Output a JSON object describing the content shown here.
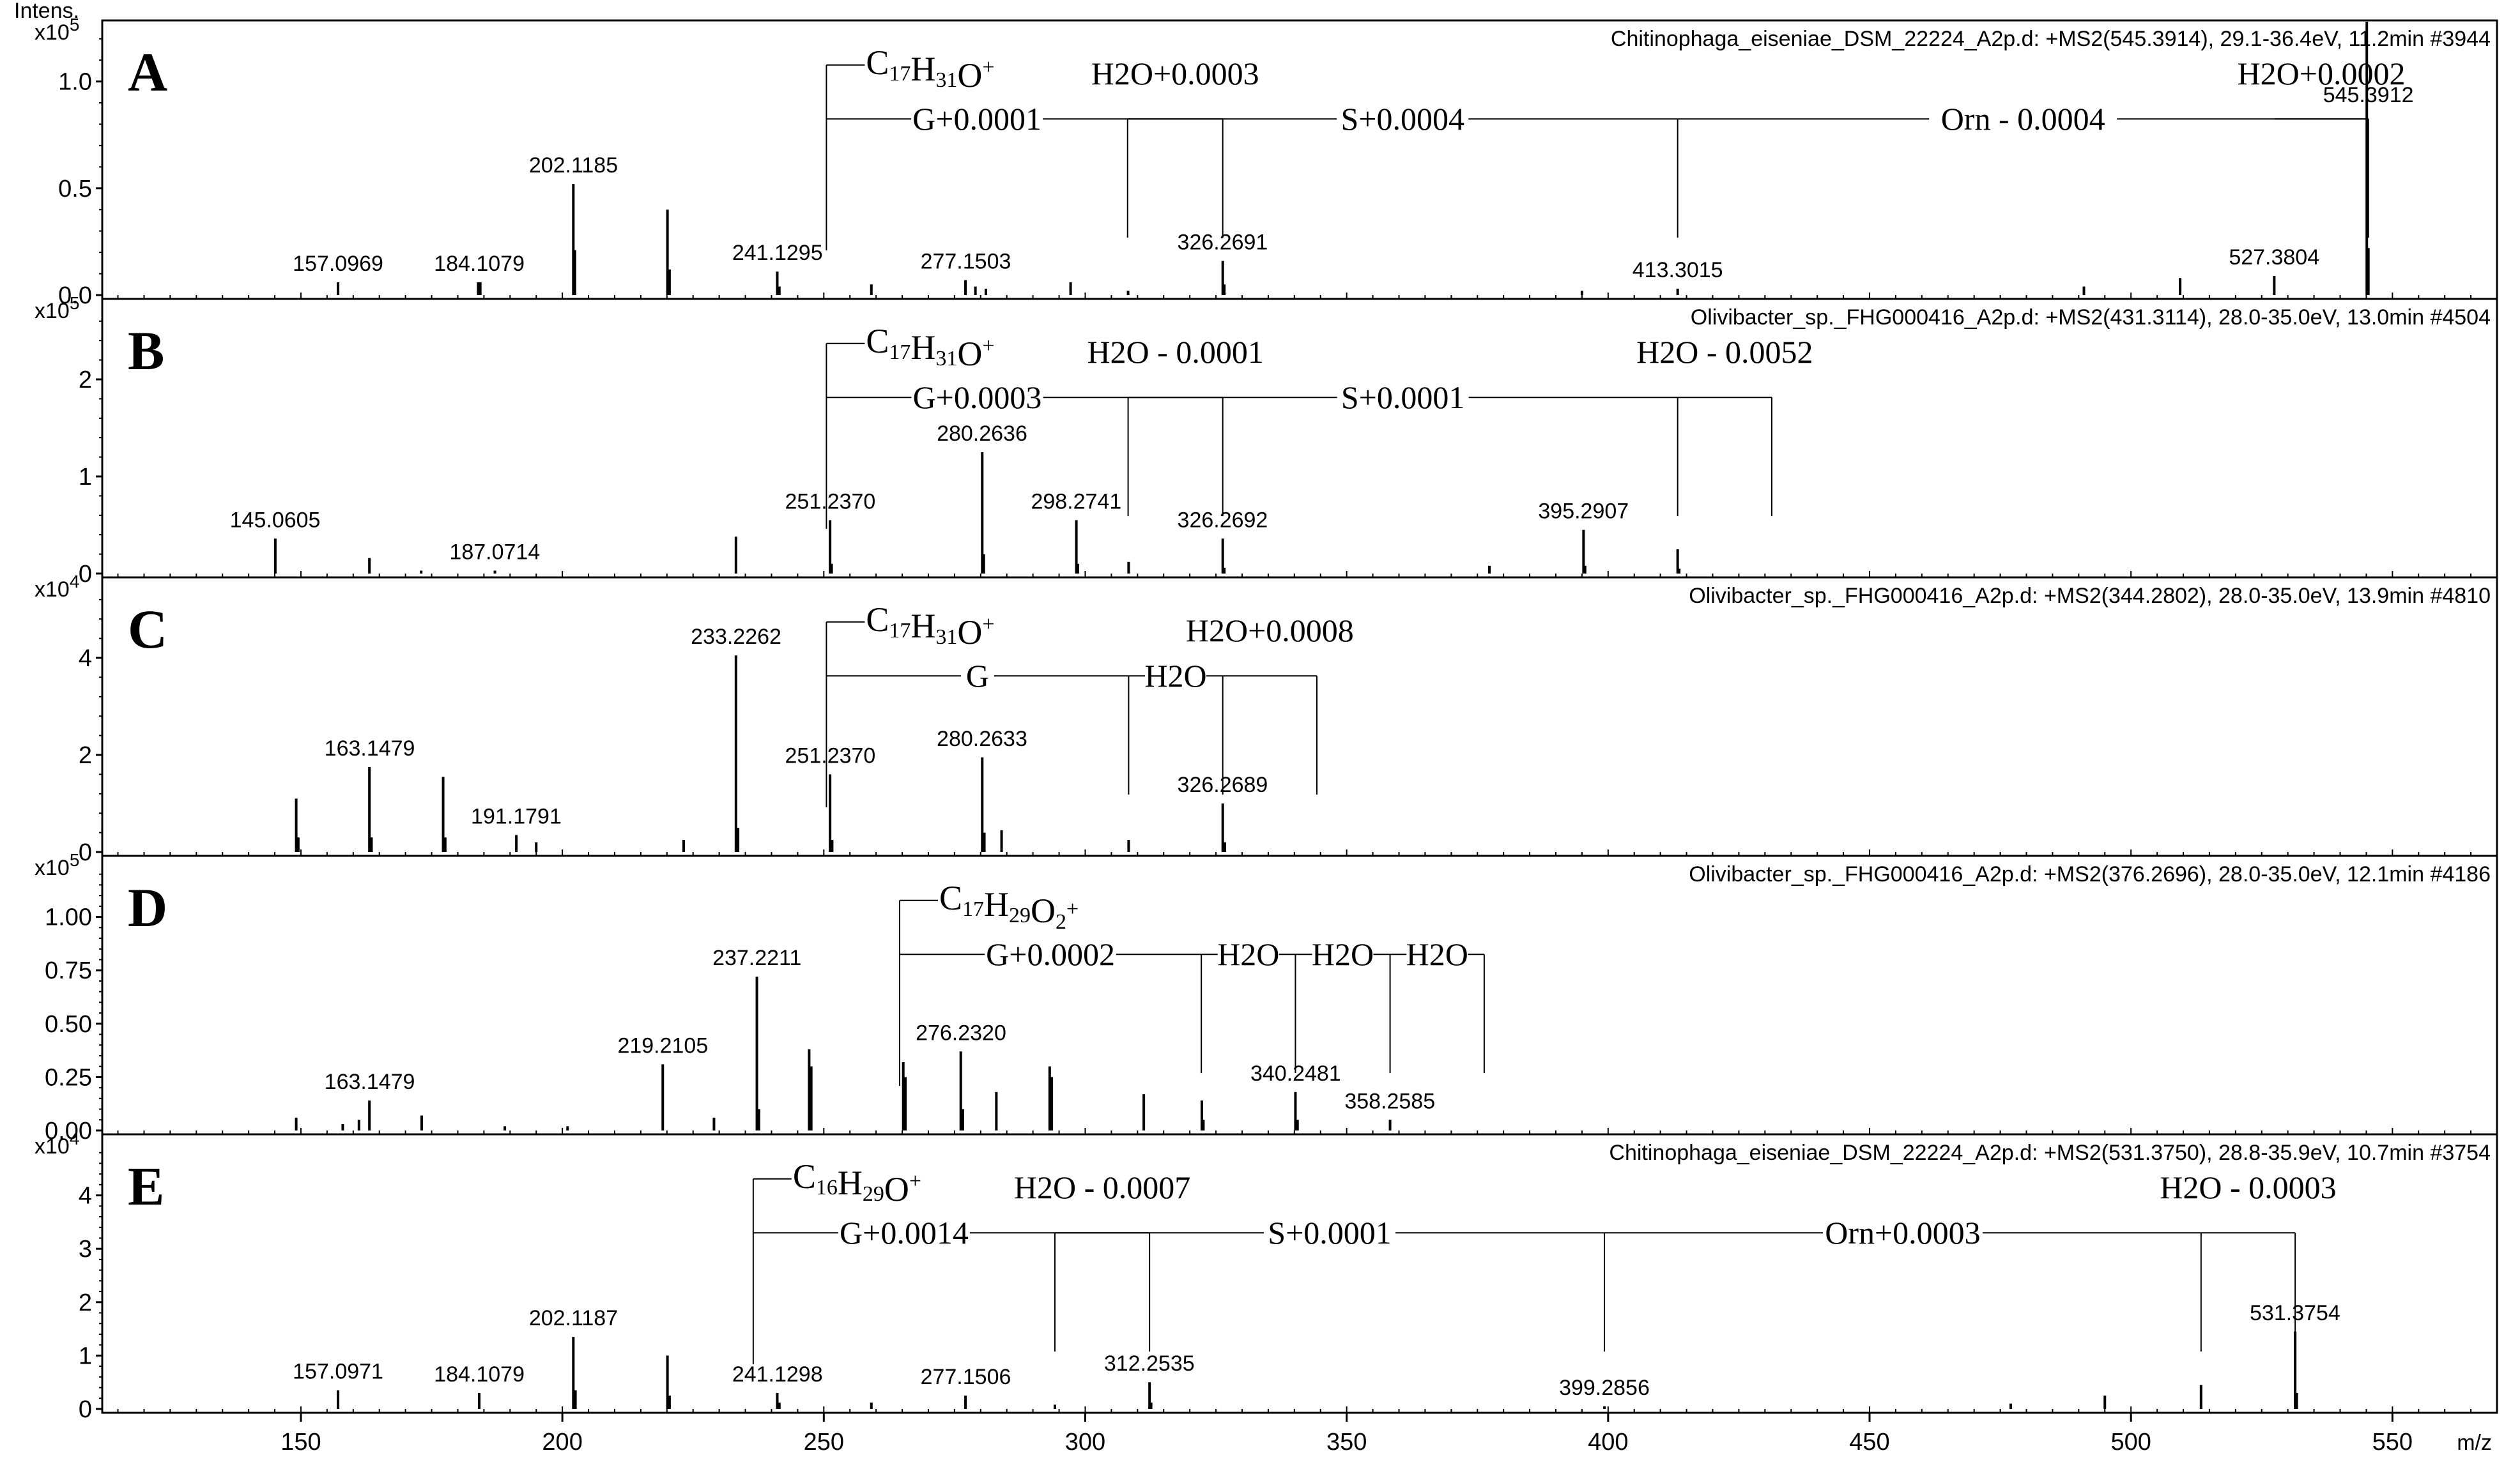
{
  "chart_data": [
    {
      "type": "spectrum",
      "panel": "A",
      "title": "Chitinophaga_eiseniae_DSM_22224_A2p.d: +MS2(545.3914), 29.1-36.4eV, 11.2min #3944",
      "ylabel": "Intens.",
      "yexp": "x10",
      "yexp_power": "5",
      "ylim": [
        0,
        1.25
      ],
      "yticks": [
        {
          "v": 0.0,
          "t": "0.0"
        },
        {
          "v": 0.5,
          "t": "0.5"
        },
        {
          "v": 1.0,
          "t": "1.0"
        }
      ],
      "peaks": [
        [
          157.1,
          0.06
        ],
        [
          183.9,
          0.06
        ],
        [
          184.3,
          0.06
        ],
        [
          202.1,
          0.52
        ],
        [
          202.4,
          0.21
        ],
        [
          220.1,
          0.4
        ],
        [
          220.5,
          0.12
        ],
        [
          241.1,
          0.11
        ],
        [
          241.5,
          0.04
        ],
        [
          259.1,
          0.05
        ],
        [
          277.1,
          0.07
        ],
        [
          279.0,
          0.04
        ],
        [
          281.0,
          0.03
        ],
        [
          297.2,
          0.06
        ],
        [
          308.2,
          0.02
        ],
        [
          326.3,
          0.16
        ],
        [
          326.6,
          0.05
        ],
        [
          395.0,
          0.02
        ],
        [
          413.3,
          0.03
        ],
        [
          491.0,
          0.04
        ],
        [
          509.4,
          0.08
        ],
        [
          527.4,
          0.09
        ],
        [
          545.1,
          1.28
        ],
        [
          545.4,
          0.22
        ]
      ],
      "labels": [
        {
          "x": 157.0969,
          "y": 0.06,
          "t": "157.0969"
        },
        {
          "x": 184.1079,
          "y": 0.06,
          "t": "184.1079"
        },
        {
          "x": 202.1185,
          "y": 0.52,
          "t": "202.1185"
        },
        {
          "x": 241.1295,
          "y": 0.11,
          "t": "241.1295"
        },
        {
          "x": 277.1503,
          "y": 0.07,
          "t": "277.1503"
        },
        {
          "x": 326.2691,
          "y": 0.16,
          "t": "326.2691"
        },
        {
          "x": 413.3015,
          "y": 0.03,
          "t": "413.3015"
        },
        {
          "x": 527.3804,
          "y": 0.09,
          "t": "527.3804"
        },
        {
          "x": 545.3912,
          "y": 0.85,
          "t": "545.3912"
        }
      ],
      "formula": {
        "x": 250.5,
        "c": "17",
        "h": "31",
        "o": "",
        "charge": "+"
      },
      "ladder": [
        {
          "x1": 250.5,
          "x2": 308.1,
          "t": "G+0.0001"
        },
        {
          "x1": 308.1,
          "x2": 413.3,
          "t": "S+0.0004"
        },
        {
          "x1": 413.3,
          "x2": 545.4,
          "t": "Orn - 0.0004"
        }
      ],
      "h2o": [
        {
          "x1": 308.1,
          "x2": 326.3,
          "t": "H2O+0.0003"
        },
        {
          "x1": 527.4,
          "x2": 545.4,
          "t": "H2O+0.0002"
        }
      ]
    },
    {
      "type": "spectrum",
      "panel": "B",
      "title": "Olivibacter_sp._FHG000416_A2p.d: +MS2(431.3114), 28.0-35.0eV, 13.0min #4504",
      "ylabel": "",
      "yexp": "x10",
      "yexp_power": "5",
      "ylim": [
        0,
        2.75
      ],
      "yticks": [
        {
          "v": 0,
          "t": "0"
        },
        {
          "v": 1,
          "t": "1"
        },
        {
          "v": 2,
          "t": "2"
        }
      ],
      "peaks": [
        [
          145.1,
          0.36
        ],
        [
          163.1,
          0.16
        ],
        [
          173.0,
          0.03
        ],
        [
          187.1,
          0.03
        ],
        [
          233.2,
          0.38
        ],
        [
          251.2,
          0.55
        ],
        [
          251.5,
          0.1
        ],
        [
          280.3,
          1.25
        ],
        [
          280.6,
          0.2
        ],
        [
          298.3,
          0.55
        ],
        [
          298.6,
          0.1
        ],
        [
          308.3,
          0.12
        ],
        [
          326.3,
          0.36
        ],
        [
          326.6,
          0.06
        ],
        [
          377.3,
          0.08
        ],
        [
          395.3,
          0.45
        ],
        [
          395.6,
          0.08
        ],
        [
          413.3,
          0.25
        ],
        [
          413.6,
          0.05
        ]
      ],
      "labels": [
        {
          "x": 145.0605,
          "y": 0.36,
          "t": "145.0605"
        },
        {
          "x": 187.0714,
          "y": 0.03,
          "t": "187.0714"
        },
        {
          "x": 251.237,
          "y": 0.55,
          "t": "251.2370"
        },
        {
          "x": 280.2636,
          "y": 1.25,
          "t": "280.2636"
        },
        {
          "x": 298.2741,
          "y": 0.55,
          "t": "298.2741"
        },
        {
          "x": 326.2692,
          "y": 0.36,
          "t": "326.2692"
        },
        {
          "x": 395.2907,
          "y": 0.45,
          "t": "395.2907"
        }
      ],
      "formula": {
        "x": 250.5,
        "c": "17",
        "h": "31",
        "o": "",
        "charge": "+"
      },
      "ladder": [
        {
          "x1": 250.5,
          "x2": 308.2,
          "t": "G+0.0003"
        },
        {
          "x1": 308.2,
          "x2": 413.3,
          "t": "S+0.0001"
        }
      ],
      "h2o": [
        {
          "x1": 308.2,
          "x2": 326.3,
          "t": "H2O - 0.0001"
        },
        {
          "x1": 413.3,
          "x2": 431.3,
          "t": "H2O - 0.0052"
        }
      ]
    },
    {
      "type": "spectrum",
      "panel": "C",
      "title": "Olivibacter_sp._FHG000416_A2p.d: +MS2(344.2802), 28.0-35.0eV, 13.9min #4810",
      "ylabel": "",
      "yexp": "x10",
      "yexp_power": "4",
      "ylim": [
        0,
        5.5
      ],
      "yticks": [
        {
          "v": 0,
          "t": "0"
        },
        {
          "v": 2,
          "t": "2"
        },
        {
          "v": 4,
          "t": "4"
        }
      ],
      "peaks": [
        [
          149.1,
          1.1
        ],
        [
          149.5,
          0.3
        ],
        [
          163.1,
          1.75
        ],
        [
          163.5,
          0.3
        ],
        [
          177.2,
          1.55
        ],
        [
          177.6,
          0.3
        ],
        [
          191.2,
          0.35
        ],
        [
          195.0,
          0.2
        ],
        [
          223.2,
          0.25
        ],
        [
          233.2,
          4.05
        ],
        [
          233.6,
          0.5
        ],
        [
          251.2,
          1.6
        ],
        [
          251.6,
          0.25
        ],
        [
          280.3,
          1.95
        ],
        [
          280.7,
          0.4
        ],
        [
          284.0,
          0.45
        ],
        [
          308.3,
          0.25
        ],
        [
          326.3,
          1.0
        ],
        [
          326.7,
          0.2
        ]
      ],
      "labels": [
        {
          "x": 163.1479,
          "y": 1.75,
          "t": "163.1479"
        },
        {
          "x": 191.1791,
          "y": 0.35,
          "t": "191.1791"
        },
        {
          "x": 233.2262,
          "y": 4.05,
          "t": "233.2262"
        },
        {
          "x": 251.237,
          "y": 1.6,
          "t": "251.2370"
        },
        {
          "x": 280.2633,
          "y": 1.95,
          "t": "280.2633"
        },
        {
          "x": 326.2689,
          "y": 1.0,
          "t": "326.2689"
        }
      ],
      "formula": {
        "x": 250.5,
        "c": "17",
        "h": "31",
        "o": "",
        "charge": "+"
      },
      "ladder": [
        {
          "x1": 250.5,
          "x2": 308.3,
          "t": "G"
        },
        {
          "x1": 308.3,
          "x2": 326.3,
          "t": "H2O"
        }
      ],
      "h2o": [
        {
          "x1": 326.3,
          "x2": 344.3,
          "t": "H2O+0.0008"
        }
      ]
    },
    {
      "type": "spectrum",
      "panel": "D",
      "title": "Olivibacter_sp._FHG000416_A2p.d: +MS2(376.2696), 28.0-35.0eV, 12.1min #4186",
      "ylabel": "",
      "yexp": "x10",
      "yexp_power": "5",
      "ylim": [
        0,
        1.25
      ],
      "yticks": [
        {
          "v": 0.0,
          "t": "0.00"
        },
        {
          "v": 0.25,
          "t": "0.25"
        },
        {
          "v": 0.5,
          "t": "0.50"
        },
        {
          "v": 0.75,
          "t": "0.75"
        },
        {
          "v": 1.0,
          "t": "1.00"
        }
      ],
      "peaks": [
        [
          149.1,
          0.06
        ],
        [
          158.0,
          0.03
        ],
        [
          161.1,
          0.05
        ],
        [
          163.1,
          0.14
        ],
        [
          173.1,
          0.07
        ],
        [
          189.0,
          0.02
        ],
        [
          201.0,
          0.02
        ],
        [
          219.2,
          0.31
        ],
        [
          229.0,
          0.06
        ],
        [
          237.2,
          0.72
        ],
        [
          237.6,
          0.1
        ],
        [
          247.2,
          0.38
        ],
        [
          247.6,
          0.3
        ],
        [
          265.2,
          0.32
        ],
        [
          265.6,
          0.25
        ],
        [
          276.2,
          0.37
        ],
        [
          276.6,
          0.1
        ],
        [
          283.0,
          0.18
        ],
        [
          293.2,
          0.3
        ],
        [
          293.6,
          0.25
        ],
        [
          311.2,
          0.17
        ],
        [
          322.3,
          0.14
        ],
        [
          322.6,
          0.05
        ],
        [
          340.2,
          0.18
        ],
        [
          340.6,
          0.05
        ],
        [
          358.3,
          0.05
        ]
      ],
      "labels": [
        {
          "x": 163.1479,
          "y": 0.14,
          "t": "163.1479"
        },
        {
          "x": 219.2105,
          "y": 0.31,
          "t": "219.2105"
        },
        {
          "x": 237.2211,
          "y": 0.72,
          "t": "237.2211"
        },
        {
          "x": 276.232,
          "y": 0.37,
          "t": "276.2320"
        },
        {
          "x": 340.2481,
          "y": 0.18,
          "t": "340.2481"
        },
        {
          "x": 358.2585,
          "y": 0.05,
          "t": "358.2585"
        }
      ],
      "formula": {
        "x": 264.5,
        "c": "17",
        "h": "29",
        "o": "2",
        "charge": "+"
      },
      "ladder": [
        {
          "x1": 264.5,
          "x2": 322.2,
          "t": "G+0.0002"
        },
        {
          "x1": 322.2,
          "x2": 340.2,
          "t": "H2O"
        },
        {
          "x1": 340.2,
          "x2": 358.3,
          "t": "H2O"
        },
        {
          "x1": 358.3,
          "x2": 376.3,
          "t": "H2O"
        }
      ],
      "h2o": []
    },
    {
      "type": "spectrum",
      "panel": "E",
      "title": "Chitinophaga_eiseniae_DSM_22224_A2p.d: +MS2(531.3750), 28.8-35.9eV, 10.7min #3754",
      "ylabel": "",
      "yexp": "x10",
      "yexp_power": "4",
      "ylim": [
        0,
        5.0
      ],
      "yticks": [
        {
          "v": 0,
          "t": "0"
        },
        {
          "v": 1,
          "t": "1"
        },
        {
          "v": 2,
          "t": "2"
        },
        {
          "v": 3,
          "t": "3"
        },
        {
          "v": 4,
          "t": "4"
        }
      ],
      "peaks": [
        [
          157.1,
          0.35
        ],
        [
          184.1,
          0.3
        ],
        [
          202.1,
          1.35
        ],
        [
          202.5,
          0.35
        ],
        [
          220.1,
          1.0
        ],
        [
          220.5,
          0.25
        ],
        [
          241.1,
          0.3
        ],
        [
          241.5,
          0.12
        ],
        [
          259.1,
          0.12
        ],
        [
          277.1,
          0.25
        ],
        [
          294.2,
          0.08
        ],
        [
          312.3,
          0.5
        ],
        [
          312.6,
          0.12
        ],
        [
          399.3,
          0.05
        ],
        [
          477.0,
          0.1
        ],
        [
          495.0,
          0.25
        ],
        [
          513.4,
          0.45
        ],
        [
          531.4,
          1.45
        ],
        [
          531.7,
          0.3
        ]
      ],
      "labels": [
        {
          "x": 157.0971,
          "y": 0.35,
          "t": "157.0971"
        },
        {
          "x": 184.1079,
          "y": 0.3,
          "t": "184.1079"
        },
        {
          "x": 202.1187,
          "y": 1.35,
          "t": "202.1187"
        },
        {
          "x": 241.1298,
          "y": 0.3,
          "t": "241.1298"
        },
        {
          "x": 277.1506,
          "y": 0.25,
          "t": "277.1506"
        },
        {
          "x": 312.2535,
          "y": 0.5,
          "t": "312.2535"
        },
        {
          "x": 399.2856,
          "y": 0.05,
          "t": "399.2856"
        },
        {
          "x": 531.3754,
          "y": 1.45,
          "t": "531.3754"
        }
      ],
      "formula": {
        "x": 236.5,
        "c": "16",
        "h": "29",
        "o": "",
        "charge": "+"
      },
      "ladder": [
        {
          "x1": 236.5,
          "x2": 294.2,
          "t": "G+0.0014"
        },
        {
          "x1": 294.2,
          "x2": 399.3,
          "t": "S+0.0001"
        },
        {
          "x1": 399.3,
          "x2": 513.4,
          "t": "Orn+0.0003"
        }
      ],
      "h2o": [
        {
          "x1": 294.2,
          "x2": 312.3,
          "t": "H2O - 0.0007"
        },
        {
          "x1": 513.4,
          "x2": 531.4,
          "t": "H2O - 0.0003"
        }
      ]
    }
  ],
  "x_axis": {
    "label": "m/z",
    "xlim": [
      112,
      570
    ],
    "ticks": [
      {
        "v": 150,
        "t": "150"
      },
      {
        "v": 200,
        "t": "200"
      },
      {
        "v": 250,
        "t": "250"
      },
      {
        "v": 300,
        "t": "300"
      },
      {
        "v": 350,
        "t": "350"
      },
      {
        "v": 400,
        "t": "400"
      },
      {
        "v": 450,
        "t": "450"
      },
      {
        "v": 500,
        "t": "500"
      },
      {
        "v": 550,
        "t": "550"
      }
    ]
  }
}
